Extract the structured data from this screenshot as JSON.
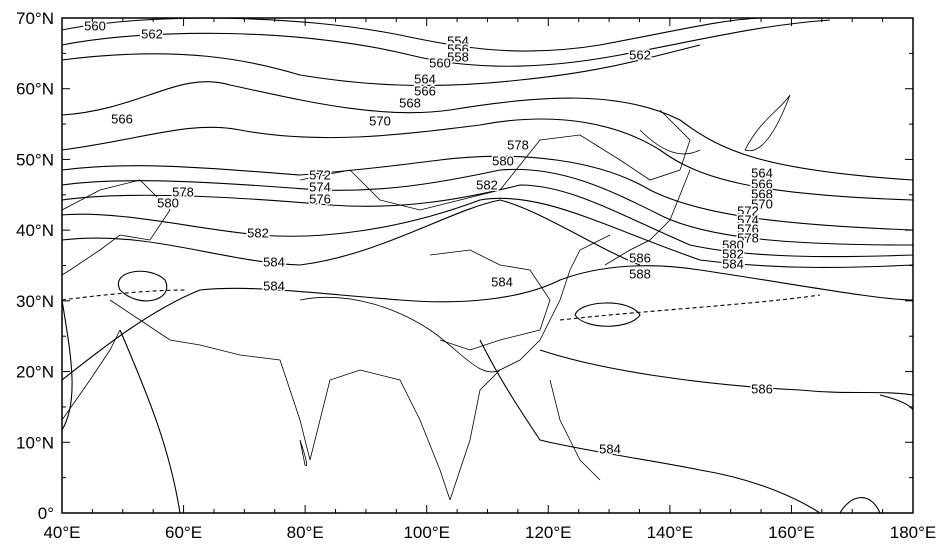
{
  "map": {
    "x_labels": [
      "40°E",
      "60°E",
      "80°E",
      "100°E",
      "120°E",
      "140°E",
      "160°E",
      "180°E"
    ],
    "y_labels": [
      "0°",
      "10°N",
      "20°N",
      "30°N",
      "40°N",
      "50°N",
      "60°N",
      "70°N"
    ],
    "contour_labels": [
      560,
      562,
      554,
      556,
      558,
      560,
      562,
      564,
      566,
      568,
      570,
      566,
      578,
      580,
      582,
      572,
      574,
      576,
      578,
      580,
      582,
      584,
      584,
      584,
      586,
      588,
      564,
      566,
      568,
      570,
      572,
      574,
      576,
      578,
      580,
      582,
      584,
      586,
      584
    ]
  }
}
